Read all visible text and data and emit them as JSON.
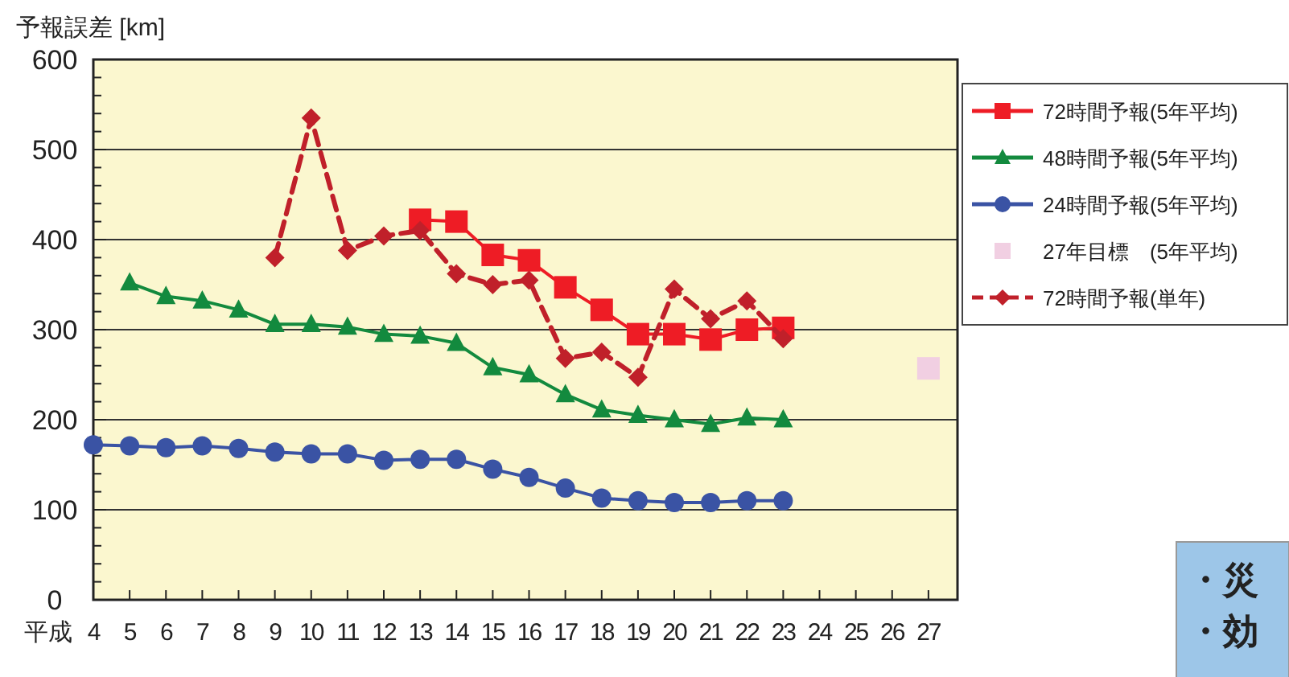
{
  "chart_data": {
    "type": "line",
    "ylabel": "予報誤差 [km]",
    "xlabel": "平成",
    "categories": [
      "4",
      "5",
      "6",
      "7",
      "8",
      "9",
      "10",
      "11",
      "12",
      "13",
      "14",
      "15",
      "16",
      "17",
      "18",
      "19",
      "20",
      "21",
      "22",
      "23",
      "24",
      "25",
      "26",
      "27"
    ],
    "ylim": [
      0,
      600
    ],
    "yticks": [
      0,
      100,
      200,
      300,
      400,
      500,
      600
    ],
    "grid": "y",
    "legend": "right",
    "series": [
      {
        "name": "72時間予報(5年平均)",
        "color": "#ee1c25",
        "marker": "square",
        "line_style": "solid",
        "values": [
          null,
          null,
          null,
          null,
          null,
          null,
          null,
          null,
          null,
          422,
          420,
          383,
          377,
          347,
          322,
          295,
          295,
          289,
          300,
          302,
          null,
          null,
          null,
          null
        ]
      },
      {
        "name": "48時間予報(5年平均)",
        "color": "#138a3e",
        "marker": "triangle",
        "line_style": "solid",
        "values": [
          null,
          352,
          337,
          332,
          322,
          306,
          306,
          303,
          295,
          293,
          285,
          258,
          250,
          228,
          211,
          205,
          200,
          195,
          202,
          200,
          null,
          null,
          null,
          null
        ]
      },
      {
        "name": "24時間予報(5年平均)",
        "color": "#3a53a4",
        "marker": "circle",
        "line_style": "solid",
        "values": [
          172,
          171,
          169,
          171,
          168,
          164,
          162,
          162,
          155,
          156,
          156,
          145,
          136,
          124,
          113,
          110,
          108,
          108,
          110,
          110,
          null,
          null,
          null,
          null
        ]
      },
      {
        "name": "27年目標　(5年平均)",
        "color": "#f1cfe2",
        "type": "scatter",
        "marker": "square",
        "values": [
          null,
          null,
          null,
          null,
          null,
          null,
          null,
          null,
          null,
          null,
          null,
          null,
          null,
          null,
          null,
          null,
          null,
          null,
          null,
          null,
          null,
          null,
          null,
          257
        ]
      },
      {
        "name": "72時間予報(単年)",
        "color": "#c0202a",
        "marker": "diamond",
        "line_style": "dashed",
        "values": [
          null,
          null,
          null,
          null,
          null,
          380,
          535,
          388,
          404,
          410,
          362,
          350,
          355,
          268,
          275,
          247,
          345,
          312,
          332,
          290,
          null,
          null,
          null,
          null
        ]
      }
    ],
    "annotations": [
      "・災",
      "・効"
    ]
  }
}
